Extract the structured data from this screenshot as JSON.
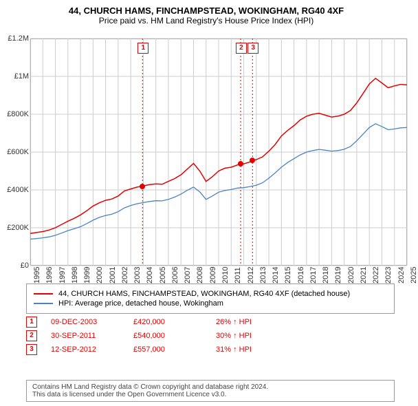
{
  "title": "44, CHURCH HAMS, FINCHAMPSTEAD, WOKINGHAM, RG40 4XF",
  "subtitle": "Price paid vs. HM Land Registry's House Price Index (HPI)",
  "chart": {
    "type": "line",
    "background_color": "#ffffff",
    "border_color": "#999999",
    "grid_color": "#cccccc",
    "x_years": [
      1995,
      1996,
      1997,
      1998,
      1999,
      2000,
      2001,
      2002,
      2003,
      2004,
      2005,
      2006,
      2007,
      2008,
      2009,
      2010,
      2011,
      2012,
      2013,
      2014,
      2015,
      2016,
      2017,
      2018,
      2019,
      2020,
      2021,
      2022,
      2023,
      2024,
      2025
    ],
    "ylim": [
      0,
      1200000
    ],
    "ytick_step": 200000,
    "ytick_labels": [
      "£0",
      "£200K",
      "£400K",
      "£600K",
      "£800K",
      "£1M",
      "£1.2M"
    ],
    "x_label_fontsize": 11,
    "y_label_fontsize": 11,
    "series": [
      {
        "name": "address",
        "label": "44, CHURCH HAMS, FINCHAMPSTEAD, WOKINGHAM, RG40 4XF (detached house)",
        "color": "#e40000",
        "line_width": 1.5,
        "points": [
          [
            1995.0,
            170000
          ],
          [
            1995.5,
            175000
          ],
          [
            1996.0,
            180000
          ],
          [
            1996.5,
            188000
          ],
          [
            1997.0,
            200000
          ],
          [
            1997.5,
            218000
          ],
          [
            1998.0,
            235000
          ],
          [
            1998.5,
            250000
          ],
          [
            1999.0,
            268000
          ],
          [
            1999.5,
            290000
          ],
          [
            2000.0,
            315000
          ],
          [
            2000.5,
            332000
          ],
          [
            2001.0,
            345000
          ],
          [
            2001.5,
            352000
          ],
          [
            2002.0,
            368000
          ],
          [
            2002.5,
            395000
          ],
          [
            2003.0,
            405000
          ],
          [
            2003.5,
            415000
          ],
          [
            2003.94,
            420000
          ],
          [
            2004.5,
            428000
          ],
          [
            2005.0,
            432000
          ],
          [
            2005.5,
            430000
          ],
          [
            2006.0,
            445000
          ],
          [
            2006.5,
            460000
          ],
          [
            2007.0,
            480000
          ],
          [
            2007.5,
            510000
          ],
          [
            2008.0,
            540000
          ],
          [
            2008.5,
            500000
          ],
          [
            2009.0,
            445000
          ],
          [
            2009.5,
            470000
          ],
          [
            2010.0,
            500000
          ],
          [
            2010.5,
            515000
          ],
          [
            2011.0,
            520000
          ],
          [
            2011.5,
            532000
          ],
          [
            2011.75,
            540000
          ],
          [
            2012.0,
            538000
          ],
          [
            2012.5,
            548000
          ],
          [
            2012.7,
            557000
          ],
          [
            2013.0,
            560000
          ],
          [
            2013.5,
            575000
          ],
          [
            2014.0,
            605000
          ],
          [
            2014.5,
            640000
          ],
          [
            2015.0,
            685000
          ],
          [
            2015.5,
            715000
          ],
          [
            2016.0,
            740000
          ],
          [
            2016.5,
            770000
          ],
          [
            2017.0,
            790000
          ],
          [
            2017.5,
            800000
          ],
          [
            2018.0,
            805000
          ],
          [
            2018.5,
            795000
          ],
          [
            2019.0,
            785000
          ],
          [
            2019.5,
            790000
          ],
          [
            2020.0,
            800000
          ],
          [
            2020.5,
            820000
          ],
          [
            2021.0,
            860000
          ],
          [
            2021.5,
            910000
          ],
          [
            2022.0,
            960000
          ],
          [
            2022.5,
            990000
          ],
          [
            2023.0,
            965000
          ],
          [
            2023.5,
            940000
          ],
          [
            2024.0,
            950000
          ],
          [
            2024.5,
            958000
          ],
          [
            2025.0,
            955000
          ]
        ]
      },
      {
        "name": "hpi",
        "label": "HPI: Average price, detached house, Wokingham",
        "color": "#4a82c3",
        "line_width": 1.3,
        "points": [
          [
            1995.0,
            140000
          ],
          [
            1995.5,
            143000
          ],
          [
            1996.0,
            147000
          ],
          [
            1996.5,
            152000
          ],
          [
            1997.0,
            160000
          ],
          [
            1997.5,
            172000
          ],
          [
            1998.0,
            185000
          ],
          [
            1998.5,
            195000
          ],
          [
            1999.0,
            206000
          ],
          [
            1999.5,
            222000
          ],
          [
            2000.0,
            240000
          ],
          [
            2000.5,
            255000
          ],
          [
            2001.0,
            265000
          ],
          [
            2001.5,
            272000
          ],
          [
            2002.0,
            285000
          ],
          [
            2002.5,
            305000
          ],
          [
            2003.0,
            318000
          ],
          [
            2003.5,
            327000
          ],
          [
            2004.0,
            333000
          ],
          [
            2004.5,
            339000
          ],
          [
            2005.0,
            343000
          ],
          [
            2005.5,
            342000
          ],
          [
            2006.0,
            350000
          ],
          [
            2006.5,
            362000
          ],
          [
            2007.0,
            378000
          ],
          [
            2007.5,
            398000
          ],
          [
            2008.0,
            415000
          ],
          [
            2008.5,
            390000
          ],
          [
            2009.0,
            350000
          ],
          [
            2009.5,
            368000
          ],
          [
            2010.0,
            388000
          ],
          [
            2010.5,
            397000
          ],
          [
            2011.0,
            402000
          ],
          [
            2011.5,
            410000
          ],
          [
            2012.0,
            412000
          ],
          [
            2012.5,
            418000
          ],
          [
            2013.0,
            425000
          ],
          [
            2013.5,
            438000
          ],
          [
            2014.0,
            462000
          ],
          [
            2014.5,
            490000
          ],
          [
            2015.0,
            520000
          ],
          [
            2015.5,
            545000
          ],
          [
            2016.0,
            565000
          ],
          [
            2016.5,
            585000
          ],
          [
            2017.0,
            600000
          ],
          [
            2017.5,
            608000
          ],
          [
            2018.0,
            614000
          ],
          [
            2018.5,
            610000
          ],
          [
            2019.0,
            605000
          ],
          [
            2019.5,
            608000
          ],
          [
            2020.0,
            615000
          ],
          [
            2020.5,
            630000
          ],
          [
            2021.0,
            660000
          ],
          [
            2021.5,
            695000
          ],
          [
            2022.0,
            730000
          ],
          [
            2022.5,
            750000
          ],
          [
            2023.0,
            735000
          ],
          [
            2023.5,
            718000
          ],
          [
            2024.0,
            722000
          ],
          [
            2024.5,
            728000
          ],
          [
            2025.0,
            730000
          ]
        ]
      }
    ],
    "vlines": [
      {
        "x": 2003.94,
        "color": "#e40000",
        "dash": "2,3"
      },
      {
        "x": 2011.75,
        "color": "#e40000",
        "dash": "2,3"
      },
      {
        "x": 2012.7,
        "color": "#e40000",
        "dash": "2,3"
      }
    ],
    "markers": [
      {
        "id": "1",
        "x": 2003.94,
        "y": 420000,
        "color": "#e40000"
      },
      {
        "id": "2",
        "x": 2011.75,
        "y": 540000,
        "color": "#e40000"
      },
      {
        "id": "3",
        "x": 2012.7,
        "y": 557000,
        "color": "#e40000"
      }
    ]
  },
  "legend": {
    "rows": [
      {
        "color": "#e40000",
        "label": "44, CHURCH HAMS, FINCHAMPSTEAD, WOKINGHAM, RG40 4XF (detached house)"
      },
      {
        "color": "#4a82c3",
        "label": "HPI: Average price, detached house, Wokingham"
      }
    ]
  },
  "events": [
    {
      "id": "1",
      "date": "09-DEC-2003",
      "price": "£420,000",
      "diff": "26% ↑ HPI"
    },
    {
      "id": "2",
      "date": "30-SEP-2011",
      "price": "£540,000",
      "diff": "30% ↑ HPI"
    },
    {
      "id": "3",
      "date": "12-SEP-2012",
      "price": "£557,000",
      "diff": "31% ↑ HPI"
    }
  ],
  "footer_line1": "Contains HM Land Registry data © Crown copyright and database right 2024.",
  "footer_line2": "This data is licensed under the Open Government Licence v3.0."
}
